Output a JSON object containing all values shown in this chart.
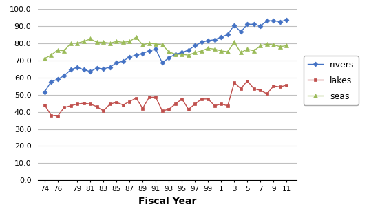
{
  "x_positions": [
    1974,
    1975,
    1976,
    1977,
    1978,
    1979,
    1980,
    1981,
    1982,
    1983,
    1984,
    1985,
    1986,
    1987,
    1988,
    1989,
    1990,
    1991,
    1992,
    1993,
    1994,
    1995,
    1996,
    1997,
    1998,
    1999,
    2000,
    2001,
    2002,
    2003,
    2004,
    2005,
    2006,
    2007,
    2008,
    2009,
    2010,
    2011
  ],
  "rivers": [
    51.5,
    57.5,
    59.0,
    61.0,
    64.5,
    66.0,
    64.5,
    63.5,
    65.5,
    65.0,
    66.0,
    68.5,
    69.5,
    72.0,
    73.0,
    74.0,
    75.5,
    76.5,
    68.5,
    71.5,
    73.5,
    74.5,
    76.0,
    78.5,
    80.5,
    81.5,
    82.0,
    83.5,
    85.0,
    90.5,
    86.5,
    91.0,
    91.0,
    90.0,
    93.0,
    93.0,
    92.5,
    93.5
  ],
  "lakes": [
    44.0,
    38.0,
    37.5,
    42.5,
    43.5,
    44.5,
    45.0,
    44.5,
    43.0,
    40.5,
    44.5,
    45.5,
    44.0,
    46.0,
    48.0,
    42.0,
    48.5,
    48.5,
    40.5,
    41.5,
    44.5,
    47.5,
    41.5,
    44.5,
    47.5,
    47.5,
    43.5,
    44.5,
    43.5,
    57.0,
    53.5,
    58.0,
    53.5,
    52.5,
    50.5,
    55.0,
    54.5,
    55.5
  ],
  "seas": [
    71.0,
    73.0,
    76.0,
    75.5,
    80.0,
    80.0,
    81.0,
    82.5,
    80.5,
    80.5,
    80.0,
    81.0,
    80.5,
    81.0,
    83.5,
    79.0,
    80.0,
    79.5,
    79.0,
    75.0,
    73.5,
    73.5,
    73.0,
    74.5,
    75.5,
    77.0,
    76.5,
    75.5,
    75.0,
    80.5,
    74.5,
    76.5,
    75.5,
    78.5,
    79.5,
    79.0,
    78.0,
    78.5
  ],
  "rivers_color": "#4472C4",
  "lakes_color": "#C0504D",
  "seas_color": "#9BBB59",
  "xlabel": "Fiscal Year",
  "ylim": [
    0.0,
    100.0
  ],
  "yticks": [
    0.0,
    10.0,
    20.0,
    30.0,
    40.0,
    50.0,
    60.0,
    70.0,
    80.0,
    90.0,
    100.0
  ],
  "x_tick_positions": [
    1974,
    1976,
    1979,
    1981,
    1983,
    1985,
    1987,
    1989,
    1991,
    1993,
    1995,
    1997,
    1999,
    2001,
    2003,
    2005,
    2007,
    2009,
    2011
  ],
  "x_tick_labels": [
    "74",
    "76",
    "79",
    "81",
    "83",
    "85",
    "87",
    "89",
    "91",
    "93",
    "95",
    "97",
    "99",
    "1",
    "3",
    "5",
    "7",
    "9",
    "11"
  ],
  "grid_color": "#C0C0C0",
  "bg_color": "#FFFFFF",
  "legend_labels": [
    "rivers",
    "lakes",
    "seas"
  ]
}
